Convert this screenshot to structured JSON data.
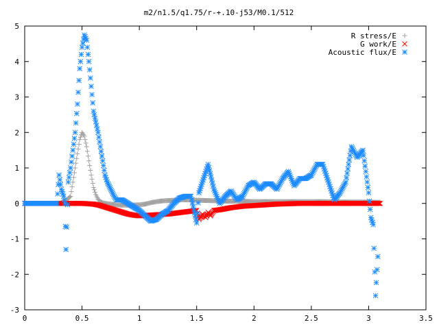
{
  "chart_data": {
    "type": "scatter",
    "title": "m2/n1.5/q1.75/r-+.10-j53/M0.1/512",
    "xlabel": "",
    "ylabel": "",
    "xlim": [
      0,
      3.5
    ],
    "ylim": [
      -3,
      5
    ],
    "x_ticks": [
      "0",
      "0.5",
      "1",
      "1.5",
      "2",
      "2.5",
      "3",
      "3.5"
    ],
    "y_ticks": [
      "5",
      "4",
      "3",
      "2",
      "1",
      "0",
      "-1",
      "-2",
      "-3"
    ],
    "x_tick_values": [
      0,
      0.5,
      1,
      1.5,
      2,
      2.5,
      3,
      3.5
    ],
    "y_tick_values": [
      5,
      4,
      3,
      2,
      1,
      0,
      -1,
      -2,
      -3
    ],
    "grid": false,
    "legend_position": "top-right",
    "series": [
      {
        "name": "R stress/E",
        "marker": "plus",
        "color": "#a0a0a0",
        "x": [
          0.0,
          0.1,
          0.2,
          0.3,
          0.35,
          0.4,
          0.42,
          0.44,
          0.46,
          0.48,
          0.5,
          0.52,
          0.54,
          0.56,
          0.58,
          0.6,
          0.62,
          0.64,
          0.66,
          0.68,
          0.7,
          0.75,
          0.8,
          0.85,
          0.9,
          1.0,
          1.05,
          1.1,
          1.15,
          1.2,
          1.25,
          1.3,
          1.35,
          1.4,
          1.45,
          1.5,
          1.6,
          1.7,
          1.8,
          1.9,
          2.0,
          2.2,
          2.4,
          2.6,
          2.8,
          3.0,
          3.1
        ],
        "y": [
          0.0,
          0.0,
          0.0,
          0.0,
          0.05,
          0.2,
          0.6,
          1.0,
          1.4,
          1.8,
          2.0,
          1.9,
          1.6,
          1.2,
          0.8,
          0.45,
          0.25,
          0.12,
          0.05,
          0.02,
          0.0,
          -0.02,
          -0.04,
          -0.05,
          -0.05,
          -0.04,
          -0.02,
          0.02,
          0.05,
          0.07,
          0.08,
          0.09,
          0.1,
          0.1,
          0.1,
          0.09,
          0.08,
          0.07,
          0.06,
          0.06,
          0.05,
          0.05,
          0.05,
          0.05,
          0.04,
          0.04,
          0.03
        ]
      },
      {
        "name": "G work/E",
        "marker": "cross",
        "color": "#ff0000",
        "x": [
          0.0,
          0.2,
          0.4,
          0.5,
          0.55,
          0.6,
          0.65,
          0.7,
          0.75,
          0.8,
          0.85,
          0.9,
          0.95,
          1.0,
          1.05,
          1.1,
          1.15,
          1.2,
          1.25,
          1.3,
          1.35,
          1.4,
          1.45,
          1.5,
          1.52,
          1.55,
          1.58,
          1.6,
          1.62,
          1.65,
          1.7,
          1.75,
          1.8,
          1.85,
          1.9,
          2.0,
          2.1,
          2.2,
          2.4,
          2.6,
          2.8,
          3.0,
          3.1
        ],
        "y": [
          0.0,
          0.0,
          0.0,
          0.0,
          -0.01,
          -0.02,
          -0.05,
          -0.1,
          -0.15,
          -0.2,
          -0.25,
          -0.3,
          -0.33,
          -0.35,
          -0.34,
          -0.33,
          -0.32,
          -0.31,
          -0.3,
          -0.28,
          -0.26,
          -0.24,
          -0.22,
          -0.2,
          -0.45,
          -0.3,
          -0.4,
          -0.25,
          -0.35,
          -0.2,
          -0.18,
          -0.15,
          -0.12,
          -0.1,
          -0.08,
          -0.06,
          -0.04,
          -0.02,
          0.0,
          0.0,
          0.0,
          0.0,
          0.0
        ]
      },
      {
        "name": "Acoustic flux/E",
        "marker": "star",
        "color": "#1e8cff",
        "x": [
          0.0,
          0.1,
          0.2,
          0.28,
          0.3,
          0.32,
          0.34,
          0.35,
          0.36,
          0.38,
          0.4,
          0.42,
          0.44,
          0.46,
          0.48,
          0.5,
          0.52,
          0.54,
          0.56,
          0.58,
          0.6,
          0.62,
          0.64,
          0.66,
          0.68,
          0.7,
          0.72,
          0.75,
          0.78,
          0.8,
          0.85,
          0.9,
          0.95,
          1.0,
          1.05,
          1.1,
          1.15,
          1.2,
          1.25,
          1.3,
          1.35,
          1.4,
          1.45,
          1.5,
          1.52,
          1.55,
          1.58,
          1.6,
          1.65,
          1.7,
          1.75,
          1.8,
          1.85,
          1.9,
          1.95,
          2.0,
          2.05,
          2.1,
          2.15,
          2.2,
          2.25,
          2.3,
          2.35,
          2.4,
          2.45,
          2.5,
          2.55,
          2.6,
          2.65,
          2.7,
          2.75,
          2.8,
          2.85,
          2.9,
          2.95,
          3.0,
          3.02,
          3.04,
          3.06,
          3.08
        ],
        "y": [
          0.0,
          0.0,
          0.0,
          0.0,
          0.8,
          0.4,
          0.2,
          0.0,
          -1.3,
          0.6,
          1.0,
          1.5,
          2.0,
          2.8,
          3.8,
          4.4,
          4.75,
          4.6,
          4.0,
          3.3,
          2.6,
          2.3,
          2.0,
          1.6,
          1.2,
          0.8,
          0.6,
          0.4,
          0.2,
          0.1,
          0.1,
          0.0,
          -0.1,
          -0.2,
          -0.35,
          -0.5,
          -0.45,
          -0.3,
          -0.2,
          0.0,
          0.15,
          0.2,
          0.2,
          -0.55,
          0.3,
          0.6,
          0.9,
          1.1,
          0.4,
          0.0,
          0.2,
          0.35,
          0.1,
          0.2,
          0.5,
          0.6,
          0.4,
          0.55,
          0.55,
          0.4,
          0.7,
          0.9,
          0.5,
          0.7,
          0.7,
          0.8,
          1.1,
          1.1,
          0.6,
          0.1,
          0.3,
          0.6,
          1.6,
          1.3,
          1.5,
          0.3,
          -0.4,
          -0.6,
          -2.6,
          -1.5
        ]
      }
    ]
  }
}
